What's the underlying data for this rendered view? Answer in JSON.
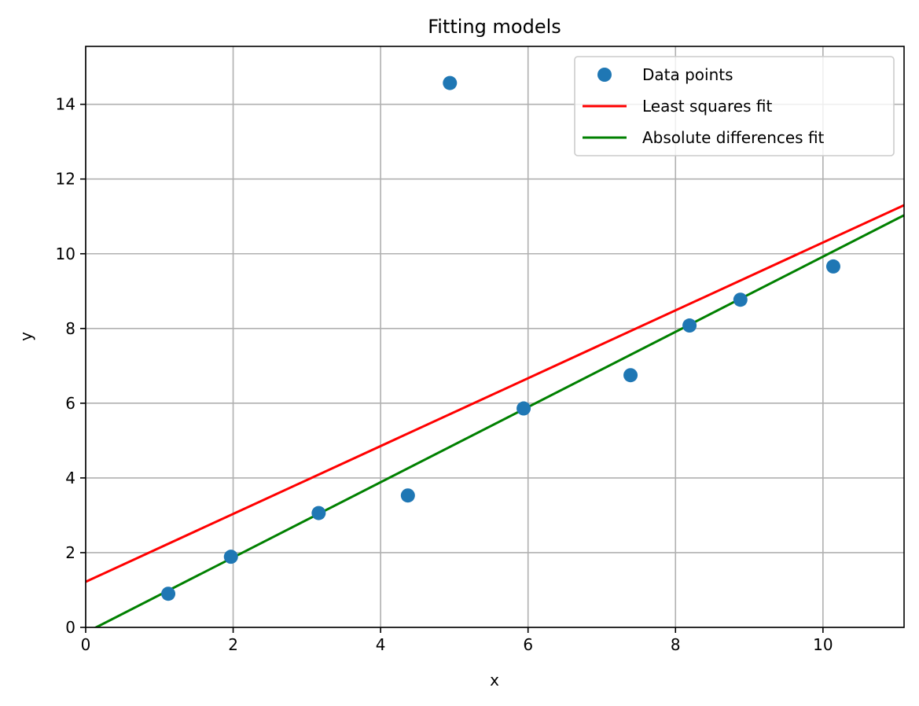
{
  "chart_data": {
    "type": "scatter",
    "title": "Fitting models",
    "xlabel": "x",
    "ylabel": "y",
    "xlim": [
      0,
      11.1
    ],
    "ylim": [
      0,
      15.55
    ],
    "xticks": [
      0,
      2,
      4,
      6,
      8,
      10
    ],
    "yticks": [
      0,
      2,
      4,
      6,
      8,
      10,
      12,
      14
    ],
    "grid": true,
    "legend_position": "top-right",
    "series": [
      {
        "name": "Data points",
        "kind": "scatter",
        "color": "#1f77b4",
        "x": [
          1.12,
          1.97,
          3.16,
          4.37,
          4.94,
          5.94,
          7.39,
          8.19,
          8.88,
          10.14
        ],
        "y": [
          0.9,
          1.89,
          3.06,
          3.53,
          14.57,
          5.86,
          6.75,
          8.08,
          8.77,
          9.66
        ]
      },
      {
        "name": "Least squares fit",
        "kind": "line",
        "color": "#ff0000",
        "x": [
          0,
          11.1
        ],
        "y": [
          1.22,
          11.3
        ]
      },
      {
        "name": "Absolute differences fit",
        "kind": "line",
        "color": "#008000",
        "x": [
          0,
          11.1
        ],
        "y": [
          -0.14,
          11.03
        ]
      }
    ]
  }
}
